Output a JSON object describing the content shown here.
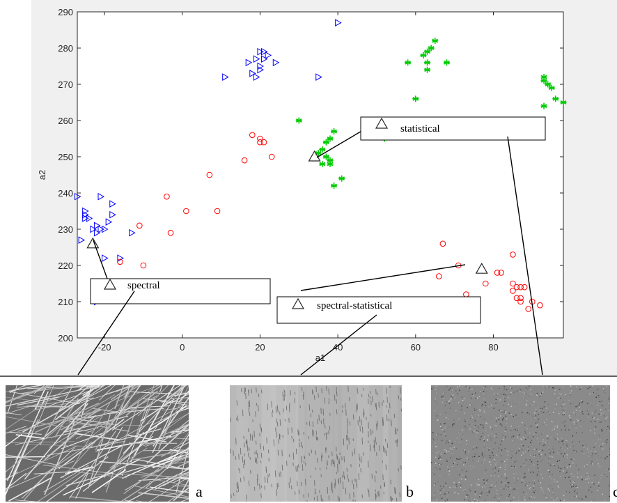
{
  "chart_data": {
    "type": "scatter",
    "xlabel": "a1",
    "ylabel": "a2",
    "xlim": [
      -27,
      98
    ],
    "ylim": [
      200,
      290
    ],
    "xticks": [
      -20,
      0,
      20,
      40,
      60,
      80
    ],
    "yticks": [
      200,
      210,
      220,
      230,
      240,
      250,
      260,
      270,
      280,
      290
    ],
    "grid": false,
    "series": [
      {
        "marker": "triangle-right",
        "color": "#0000ff",
        "points": [
          [
            40,
            287
          ],
          [
            11,
            272
          ],
          [
            35,
            272
          ],
          [
            17,
            276
          ],
          [
            18,
            273
          ],
          [
            19,
            272
          ],
          [
            19,
            277
          ],
          [
            20,
            274
          ],
          [
            20,
            275
          ],
          [
            20,
            279
          ],
          [
            21,
            279
          ],
          [
            21,
            277
          ],
          [
            22,
            278
          ],
          [
            24,
            276
          ],
          [
            -27,
            239
          ],
          [
            -25,
            235
          ],
          [
            -25,
            234
          ],
          [
            -24,
            233
          ],
          [
            -25,
            233
          ],
          [
            -22,
            231
          ],
          [
            -23,
            230
          ],
          [
            -22,
            229
          ],
          [
            -21,
            230
          ],
          [
            -20,
            230
          ],
          [
            -19,
            232
          ],
          [
            -18,
            234
          ],
          [
            -18,
            237
          ],
          [
            -21,
            239
          ],
          [
            -26,
            227
          ],
          [
            -20,
            222
          ],
          [
            -13,
            229
          ],
          [
            -16,
            222
          ],
          [
            -22,
            210
          ]
        ]
      },
      {
        "marker": "circle",
        "color": "#ff0000",
        "points": [
          [
            18,
            256
          ],
          [
            20,
            255
          ],
          [
            20,
            254
          ],
          [
            21,
            254
          ],
          [
            23,
            250
          ],
          [
            16,
            249
          ],
          [
            7,
            245
          ],
          [
            9,
            235
          ],
          [
            1,
            235
          ],
          [
            -4,
            239
          ],
          [
            -3,
            229
          ],
          [
            -11,
            231
          ],
          [
            -10,
            220
          ],
          [
            -16,
            221
          ],
          [
            67,
            226
          ],
          [
            71,
            220
          ],
          [
            78,
            215
          ],
          [
            81,
            218
          ],
          [
            82,
            218
          ],
          [
            85,
            223
          ],
          [
            85,
            215
          ],
          [
            85,
            213
          ],
          [
            86,
            211
          ],
          [
            86,
            214
          ],
          [
            87,
            214
          ],
          [
            88,
            214
          ],
          [
            87,
            211
          ],
          [
            87,
            210
          ],
          [
            89,
            208
          ],
          [
            90,
            210
          ],
          [
            92,
            209
          ],
          [
            66,
            217
          ],
          [
            73,
            212
          ],
          [
            75,
            210
          ],
          [
            30,
            206
          ]
        ]
      },
      {
        "marker": "asterisk",
        "color": "#00cc00",
        "points": [
          [
            65,
            282
          ],
          [
            62,
            278
          ],
          [
            63,
            279
          ],
          [
            64,
            280
          ],
          [
            63,
            276
          ],
          [
            63,
            274
          ],
          [
            68,
            276
          ],
          [
            58,
            276
          ],
          [
            60,
            266
          ],
          [
            30,
            260
          ],
          [
            39,
            257
          ],
          [
            38,
            255
          ],
          [
            37,
            254
          ],
          [
            36,
            252
          ],
          [
            35,
            251
          ],
          [
            37,
            250
          ],
          [
            38,
            249
          ],
          [
            36,
            248
          ],
          [
            38,
            248
          ],
          [
            39,
            242
          ],
          [
            41,
            244
          ],
          [
            52,
            255
          ],
          [
            93,
            272
          ],
          [
            93,
            271
          ],
          [
            94,
            270
          ],
          [
            95,
            269
          ],
          [
            96,
            266
          ],
          [
            98,
            265
          ],
          [
            93,
            264
          ]
        ]
      }
    ],
    "annotations": [
      {
        "label": "statistical",
        "marker_x": 51,
        "marker_y": 258
      },
      {
        "label": "spectral",
        "marker_x": -16,
        "marker_y": 214
      },
      {
        "label": "spectral-statistical",
        "marker_x": 30,
        "marker_y": 210
      }
    ],
    "centroids": [
      {
        "x": -23,
        "y": 226
      },
      {
        "x": 34,
        "y": 250
      },
      {
        "x": 77,
        "y": 219
      }
    ]
  },
  "panels": [
    {
      "letter": "a"
    },
    {
      "letter": "b"
    },
    {
      "letter": "c"
    }
  ]
}
